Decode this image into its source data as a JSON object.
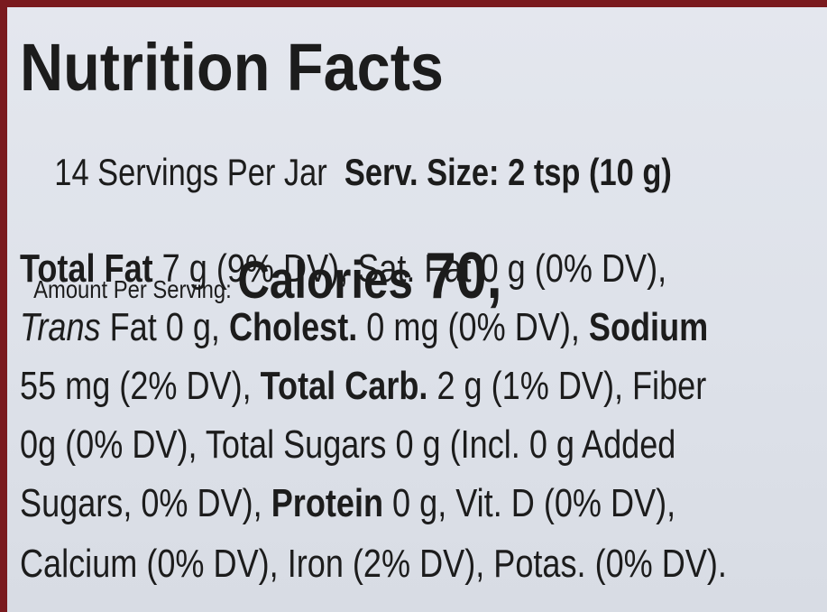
{
  "title": "Nutrition Facts",
  "header": {
    "servings": "14 Servings Per Jar",
    "serving_size": "Serv. Size: 2 tsp (10 g)"
  },
  "calories": {
    "amount_label": "Amount Per Serving:",
    "label": "Calories",
    "value": "70,"
  },
  "body_lines": [
    [
      {
        "text": "Total Fat",
        "style": "bold"
      },
      {
        "text": " 7 g (9% DV), Sat. Fat 0 g (0% DV),",
        "style": "regular"
      }
    ],
    [
      {
        "text": "Trans",
        "style": "italic"
      },
      {
        "text": " Fat 0 g, ",
        "style": "regular"
      },
      {
        "text": "Cholest.",
        "style": "bold"
      },
      {
        "text": " 0 mg (0% DV), ",
        "style": "regular"
      },
      {
        "text": "Sodium",
        "style": "bold"
      }
    ],
    [
      {
        "text": "55 mg (2% DV), ",
        "style": "regular"
      },
      {
        "text": "Total Carb.",
        "style": "bold"
      },
      {
        "text": " 2 g (1% DV), Fiber",
        "style": "regular"
      }
    ],
    [
      {
        "text": "0g (0% DV), Total Sugars 0 g (Incl. 0 g Added",
        "style": "regular"
      }
    ],
    [
      {
        "text": "Sugars, 0% DV), ",
        "style": "regular"
      },
      {
        "text": "Protein",
        "style": "bold"
      },
      {
        "text": " 0 g, Vit. D (0% DV),",
        "style": "regular"
      }
    ],
    [
      {
        "text": "Calcium (0% DV), Iron (2% DV), Potas. (0% DV).",
        "style": "regular"
      }
    ]
  ]
}
